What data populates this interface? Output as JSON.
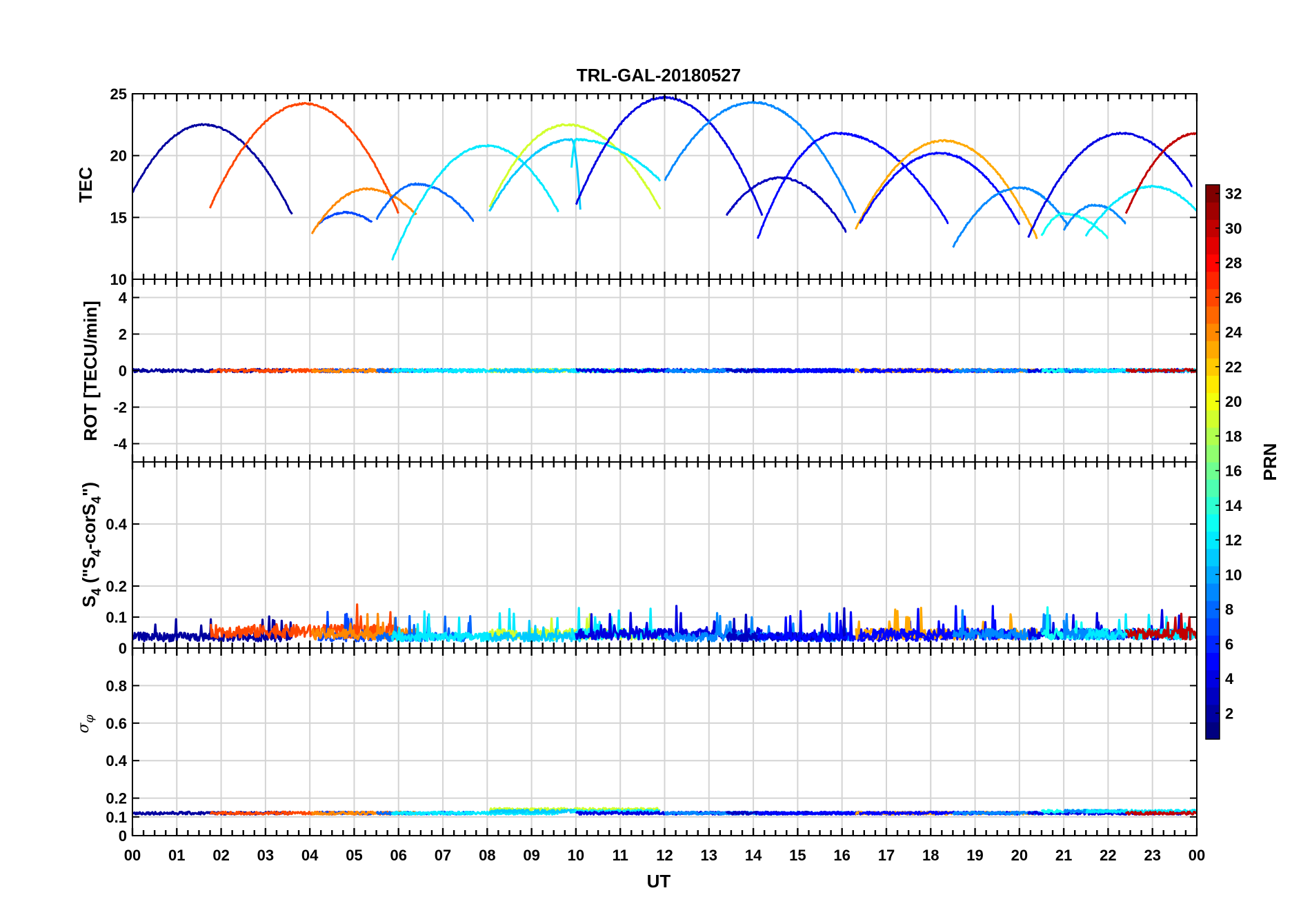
{
  "chart_data": {
    "type": "line",
    "title": "TRL-GAL-20180527",
    "xlabel": "UT",
    "x_ticks": [
      "00",
      "01",
      "02",
      "03",
      "04",
      "05",
      "06",
      "07",
      "08",
      "09",
      "10",
      "11",
      "12",
      "13",
      "14",
      "15",
      "16",
      "17",
      "18",
      "19",
      "20",
      "21",
      "22",
      "23",
      "00"
    ],
    "xlim": [
      0,
      24
    ],
    "panels": [
      {
        "id": "tec",
        "ylabel": "TEC",
        "ylim": [
          10,
          25
        ],
        "y_ticks": [
          10,
          15,
          20,
          25
        ],
        "y_tick_labels": [
          "10",
          "15",
          "20",
          "25"
        ]
      },
      {
        "id": "rot",
        "ylabel": "ROT [TECU/min]",
        "ylim": [
          -5,
          5
        ],
        "y_ticks": [
          -4,
          -2,
          0,
          2,
          4
        ],
        "y_tick_labels": [
          "-4",
          "-2",
          "0",
          "2",
          "4"
        ]
      },
      {
        "id": "s4",
        "ylabel": "S4 (\"S4-corS4\")",
        "ylim": [
          0,
          0.6
        ],
        "y_ticks": [
          0,
          0.1,
          0.2,
          0.4
        ],
        "y_tick_labels": [
          "0",
          "0.1",
          "0.2",
          "0.4"
        ]
      },
      {
        "id": "sigma",
        "ylabel": "σφ",
        "ylim": [
          0,
          1
        ],
        "y_ticks": [
          0,
          0.1,
          0.2,
          0.4,
          0.6,
          0.8
        ],
        "y_tick_labels": [
          "0",
          "0.1",
          "0.2",
          "0.4",
          "0.6",
          "0.8"
        ]
      }
    ],
    "ylabel_parts": {
      "s4_main": "S",
      "s4_sub": "4",
      "s4_open": " (\"S",
      "s4_mid": "-corS",
      "s4_close": "\")",
      "sigma_main": "σ",
      "sigma_sub": "φ"
    },
    "colorbar": {
      "label": "PRN",
      "range": [
        1,
        32
      ],
      "ticks": [
        2,
        4,
        6,
        8,
        10,
        12,
        14,
        16,
        18,
        20,
        22,
        24,
        26,
        28,
        30,
        32
      ],
      "tick_labels": [
        "2",
        "4",
        "6",
        "8",
        "10",
        "12",
        "14",
        "16",
        "18",
        "20",
        "22",
        "24",
        "26",
        "28",
        "30",
        "32"
      ]
    },
    "series": [
      {
        "prn": 2,
        "start": 0.0,
        "end": 3.6,
        "tec": [
          17.0,
          22.5,
          15.2
        ],
        "peak": 1.6,
        "s4": 0.04,
        "sigma": 0.12
      },
      {
        "prn": 26,
        "start": 1.75,
        "end": 6.0,
        "tec": [
          15.8,
          24.2,
          15.3
        ],
        "peak": 3.9,
        "s4": 0.06,
        "sigma": 0.12
      },
      {
        "prn": 7,
        "start": 4.2,
        "end": 5.4,
        "tec": [
          14.5,
          15.4,
          14.6
        ],
        "peak": 4.8,
        "s4": 0.04,
        "sigma": 0.12
      },
      {
        "prn": 24,
        "start": 4.05,
        "end": 6.4,
        "tec": [
          13.7,
          17.3,
          15.2
        ],
        "peak": 5.3,
        "s4": 0.05,
        "sigma": 0.12
      },
      {
        "prn": 8,
        "start": 5.5,
        "end": 7.7,
        "tec": [
          14.8,
          17.7,
          14.7
        ],
        "peak": 6.4,
        "s4": 0.04,
        "sigma": 0.12
      },
      {
        "prn": 12,
        "start": 5.85,
        "end": 9.6,
        "tec": [
          11.5,
          20.8,
          15.5
        ],
        "peak": 8.0,
        "s4": 0.04,
        "sigma": 0.12
      },
      {
        "prn": 19,
        "start": 8.05,
        "end": 11.9,
        "tec": [
          15.8,
          22.5,
          15.7
        ],
        "peak": 9.8,
        "s4": 0.05,
        "sigma": 0.14
      },
      {
        "prn": 11,
        "start": 8.05,
        "end": 10.1,
        "tec": [
          15.5,
          21.3,
          15.6
        ],
        "peak": 9.9,
        "s4": 0.04,
        "sigma": 0.13
      },
      {
        "prn": 12,
        "start": 9.9,
        "end": 11.9,
        "tec": [
          19.0,
          21.3,
          18.0
        ],
        "peak": 10.0,
        "s4": 0.05,
        "sigma": 0.13
      },
      {
        "prn": 4,
        "start": 10.0,
        "end": 14.2,
        "tec": [
          16.0,
          24.7,
          15.2
        ],
        "peak": 12.0,
        "s4": 0.05,
        "sigma": 0.12
      },
      {
        "prn": 9,
        "start": 12.0,
        "end": 16.3,
        "tec": [
          18.0,
          24.3,
          15.4
        ],
        "peak": 14.0,
        "s4": 0.04,
        "sigma": 0.12
      },
      {
        "prn": 3,
        "start": 13.4,
        "end": 16.1,
        "tec": [
          15.2,
          18.2,
          13.8
        ],
        "peak": 14.6,
        "s4": 0.04,
        "sigma": 0.12
      },
      {
        "prn": 5,
        "start": 14.1,
        "end": 18.4,
        "tec": [
          13.3,
          21.8,
          14.5
        ],
        "peak": 15.9,
        "s4": 0.04,
        "sigma": 0.12
      },
      {
        "prn": 23,
        "start": 16.3,
        "end": 20.4,
        "tec": [
          14.0,
          21.2,
          13.3
        ],
        "peak": 18.3,
        "s4": 0.05,
        "sigma": 0.12
      },
      {
        "prn": 5,
        "start": 16.4,
        "end": 20.0,
        "tec": [
          14.5,
          20.2,
          14.4
        ],
        "peak": 18.2,
        "s4": 0.05,
        "sigma": 0.12
      },
      {
        "prn": 9,
        "start": 18.5,
        "end": 21.1,
        "tec": [
          12.6,
          17.4,
          14.3
        ],
        "peak": 20.0,
        "s4": 0.05,
        "sigma": 0.12
      },
      {
        "prn": 4,
        "start": 20.2,
        "end": 23.9,
        "tec": [
          13.4,
          21.8,
          17.5
        ],
        "peak": 22.3,
        "s4": 0.05,
        "sigma": 0.12
      },
      {
        "prn": 13,
        "start": 20.5,
        "end": 22.0,
        "tec": [
          13.5,
          15.3,
          13.3
        ],
        "peak": 21.0,
        "s4": 0.05,
        "sigma": 0.13
      },
      {
        "prn": 9,
        "start": 21.0,
        "end": 22.4,
        "tec": [
          14.0,
          16.0,
          14.5
        ],
        "peak": 21.7,
        "s4": 0.05,
        "sigma": 0.13
      },
      {
        "prn": 12,
        "start": 21.5,
        "end": 24.0,
        "tec": [
          13.5,
          17.5,
          15.5
        ],
        "peak": 23.0,
        "s4": 0.05,
        "sigma": 0.13
      },
      {
        "prn": 30,
        "start": 22.4,
        "end": 24.0,
        "tec": [
          15.3,
          21.8,
          21.8
        ],
        "peak": 24.0,
        "s4": 0.05,
        "sigma": 0.12
      }
    ]
  }
}
